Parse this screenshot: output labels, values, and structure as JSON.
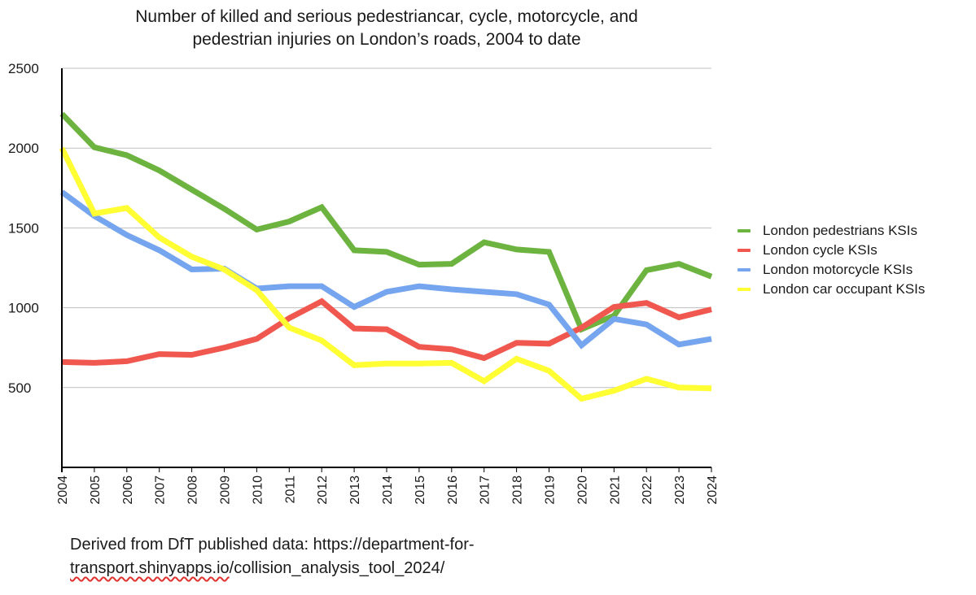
{
  "title_lines": [
    "Number of killed and serious pedestriancar, cycle, motorcycle, and",
    "pedestrian injuries on London’s roads, 2004 to date"
  ],
  "legend": [
    "London pedestrians KSIs",
    "London cycle KSIs",
    "London motorcycle KSIs",
    "London car occupant KSIs"
  ],
  "source": {
    "line1": "Derived from DfT published data: https://department-for-",
    "line2_misspelled": "transport.shinyapps.io",
    "line2_rest": "/collision_analysis_tool_2024/"
  },
  "colors": {
    "pedestrians": "#6cb33f",
    "cycle": "#f0584f",
    "motorcycle": "#76a5f0",
    "car_occupant": "#ffff33",
    "grid": "#bfbfbf",
    "axis": "#000000"
  },
  "chart_data": {
    "type": "line",
    "title": "Number of killed and serious pedestriancar, cycle, motorcycle, and pedestrian injuries on London’s roads, 2004 to date",
    "xlabel": "",
    "ylabel": "",
    "categories": [
      "2004",
      "2005",
      "2006",
      "2007",
      "2008",
      "2009",
      "2010",
      "2011",
      "2012",
      "2013",
      "2014",
      "2015",
      "2016",
      "2017",
      "2018",
      "2019",
      "2020",
      "2021",
      "2022",
      "2023",
      "2024"
    ],
    "ylim": [
      0,
      2500
    ],
    "yticks": [
      500,
      1000,
      1500,
      2000,
      2500
    ],
    "grid": true,
    "legend_position": "right",
    "series": [
      {
        "name": "London pedestrians KSIs",
        "color_key": "pedestrians",
        "values": [
          2215,
          2005,
          1955,
          1860,
          1740,
          1620,
          1490,
          1540,
          1630,
          1360,
          1350,
          1270,
          1275,
          1410,
          1365,
          1350,
          865,
          950,
          1235,
          1275,
          1195
        ]
      },
      {
        "name": "London cycle KSIs",
        "color_key": "cycle",
        "values": [
          660,
          655,
          665,
          710,
          705,
          750,
          805,
          935,
          1040,
          870,
          865,
          755,
          740,
          685,
          780,
          775,
          875,
          1005,
          1030,
          940,
          990
        ]
      },
      {
        "name": "London motorcycle KSIs",
        "color_key": "motorcycle",
        "values": [
          1725,
          1575,
          1455,
          1360,
          1240,
          1245,
          1120,
          1135,
          1135,
          1005,
          1100,
          1135,
          1115,
          1100,
          1085,
          1020,
          765,
          930,
          895,
          770,
          805
        ]
      },
      {
        "name": "London car occupant KSIs",
        "color_key": "car_occupant",
        "values": [
          2000,
          1590,
          1625,
          1440,
          1320,
          1240,
          1110,
          875,
          795,
          640,
          650,
          650,
          655,
          540,
          680,
          605,
          430,
          480,
          555,
          500,
          495
        ]
      }
    ]
  }
}
